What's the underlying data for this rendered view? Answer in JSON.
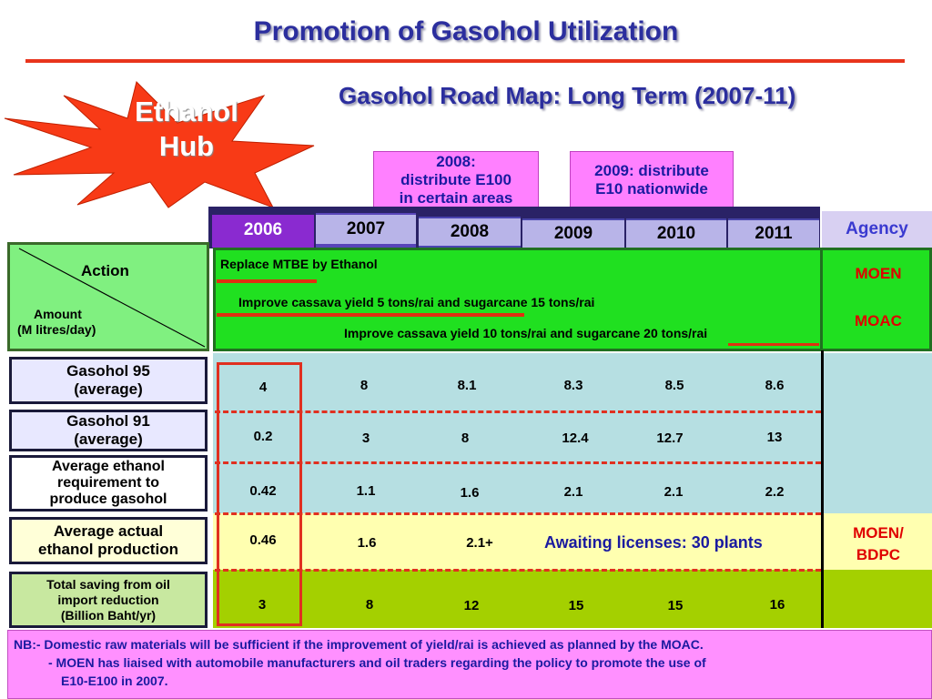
{
  "header": {
    "title": "Promotion of Gasohol Utilization",
    "subtitle": "Gasohol Road Map: Long Term (2007-11)"
  },
  "burst": {
    "line1": "Ethanol",
    "line2": "Hub",
    "color": "#f83a16"
  },
  "callouts": [
    {
      "line1": "2008:",
      "line2": "distribute E100",
      "line3": "in certain areas"
    },
    {
      "line1": "2009: distribute",
      "line2": "E10 nationwide"
    }
  ],
  "timeline": {
    "years": [
      "2006",
      "2007",
      "2008",
      "2009",
      "2010",
      "2011"
    ],
    "agency_header": "Agency"
  },
  "action_box": {
    "action_label": "Action",
    "amount_label_line1": "Amount",
    "amount_label_line2": "(M litres/day)"
  },
  "actions": [
    "Replace MTBE by Ethanol",
    "Improve cassava yield 5 tons/rai and sugarcane 15 tons/rai",
    "Improve cassava yield 10 tons/rai and sugarcane 20 tons/rai"
  ],
  "agencies": {
    "moen": "MOEN",
    "moac": "MOAC",
    "moen_bdpc_line1": "MOEN/",
    "moen_bdpc_line2": "BDPC"
  },
  "rows": [
    {
      "label_line1": "Gasohol 95",
      "label_line2": "(average)",
      "values": [
        "4",
        "8",
        "8.1",
        "8.3",
        "8.5",
        "8.6"
      ]
    },
    {
      "label_line1": "Gasohol 91",
      "label_line2": "(average)",
      "values": [
        "0.2",
        "3",
        "8",
        "12.4",
        "12.7",
        "13"
      ]
    },
    {
      "label_line1": "Average ethanol",
      "label_line2": "requirement to",
      "label_line3": "produce gasohol",
      "values": [
        "0.42",
        "1.1",
        "1.6",
        "2.1",
        "2.1",
        "2.2"
      ]
    },
    {
      "label_line1": "Average actual",
      "label_line2": "ethanol production",
      "values": [
        "0.46",
        "1.6",
        "2.1+"
      ]
    },
    {
      "label_line1": "Total saving from oil",
      "label_line2": "import reduction",
      "label_line3": "(Billion Baht/yr)",
      "values": [
        "3",
        "8",
        "12",
        "15",
        "15",
        "16"
      ]
    }
  ],
  "awaiting_text": "Awaiting licenses: 30 plants",
  "notes": {
    "line1": "NB:- Domestic raw materials will be sufficient if the improvement of yield/rai is achieved as planned by the MOAC.",
    "line2": "- MOEN has liaised with automobile manufacturers and oil traders regarding the policy to promote the use of",
    "line3": "E10-E100 in 2007."
  }
}
